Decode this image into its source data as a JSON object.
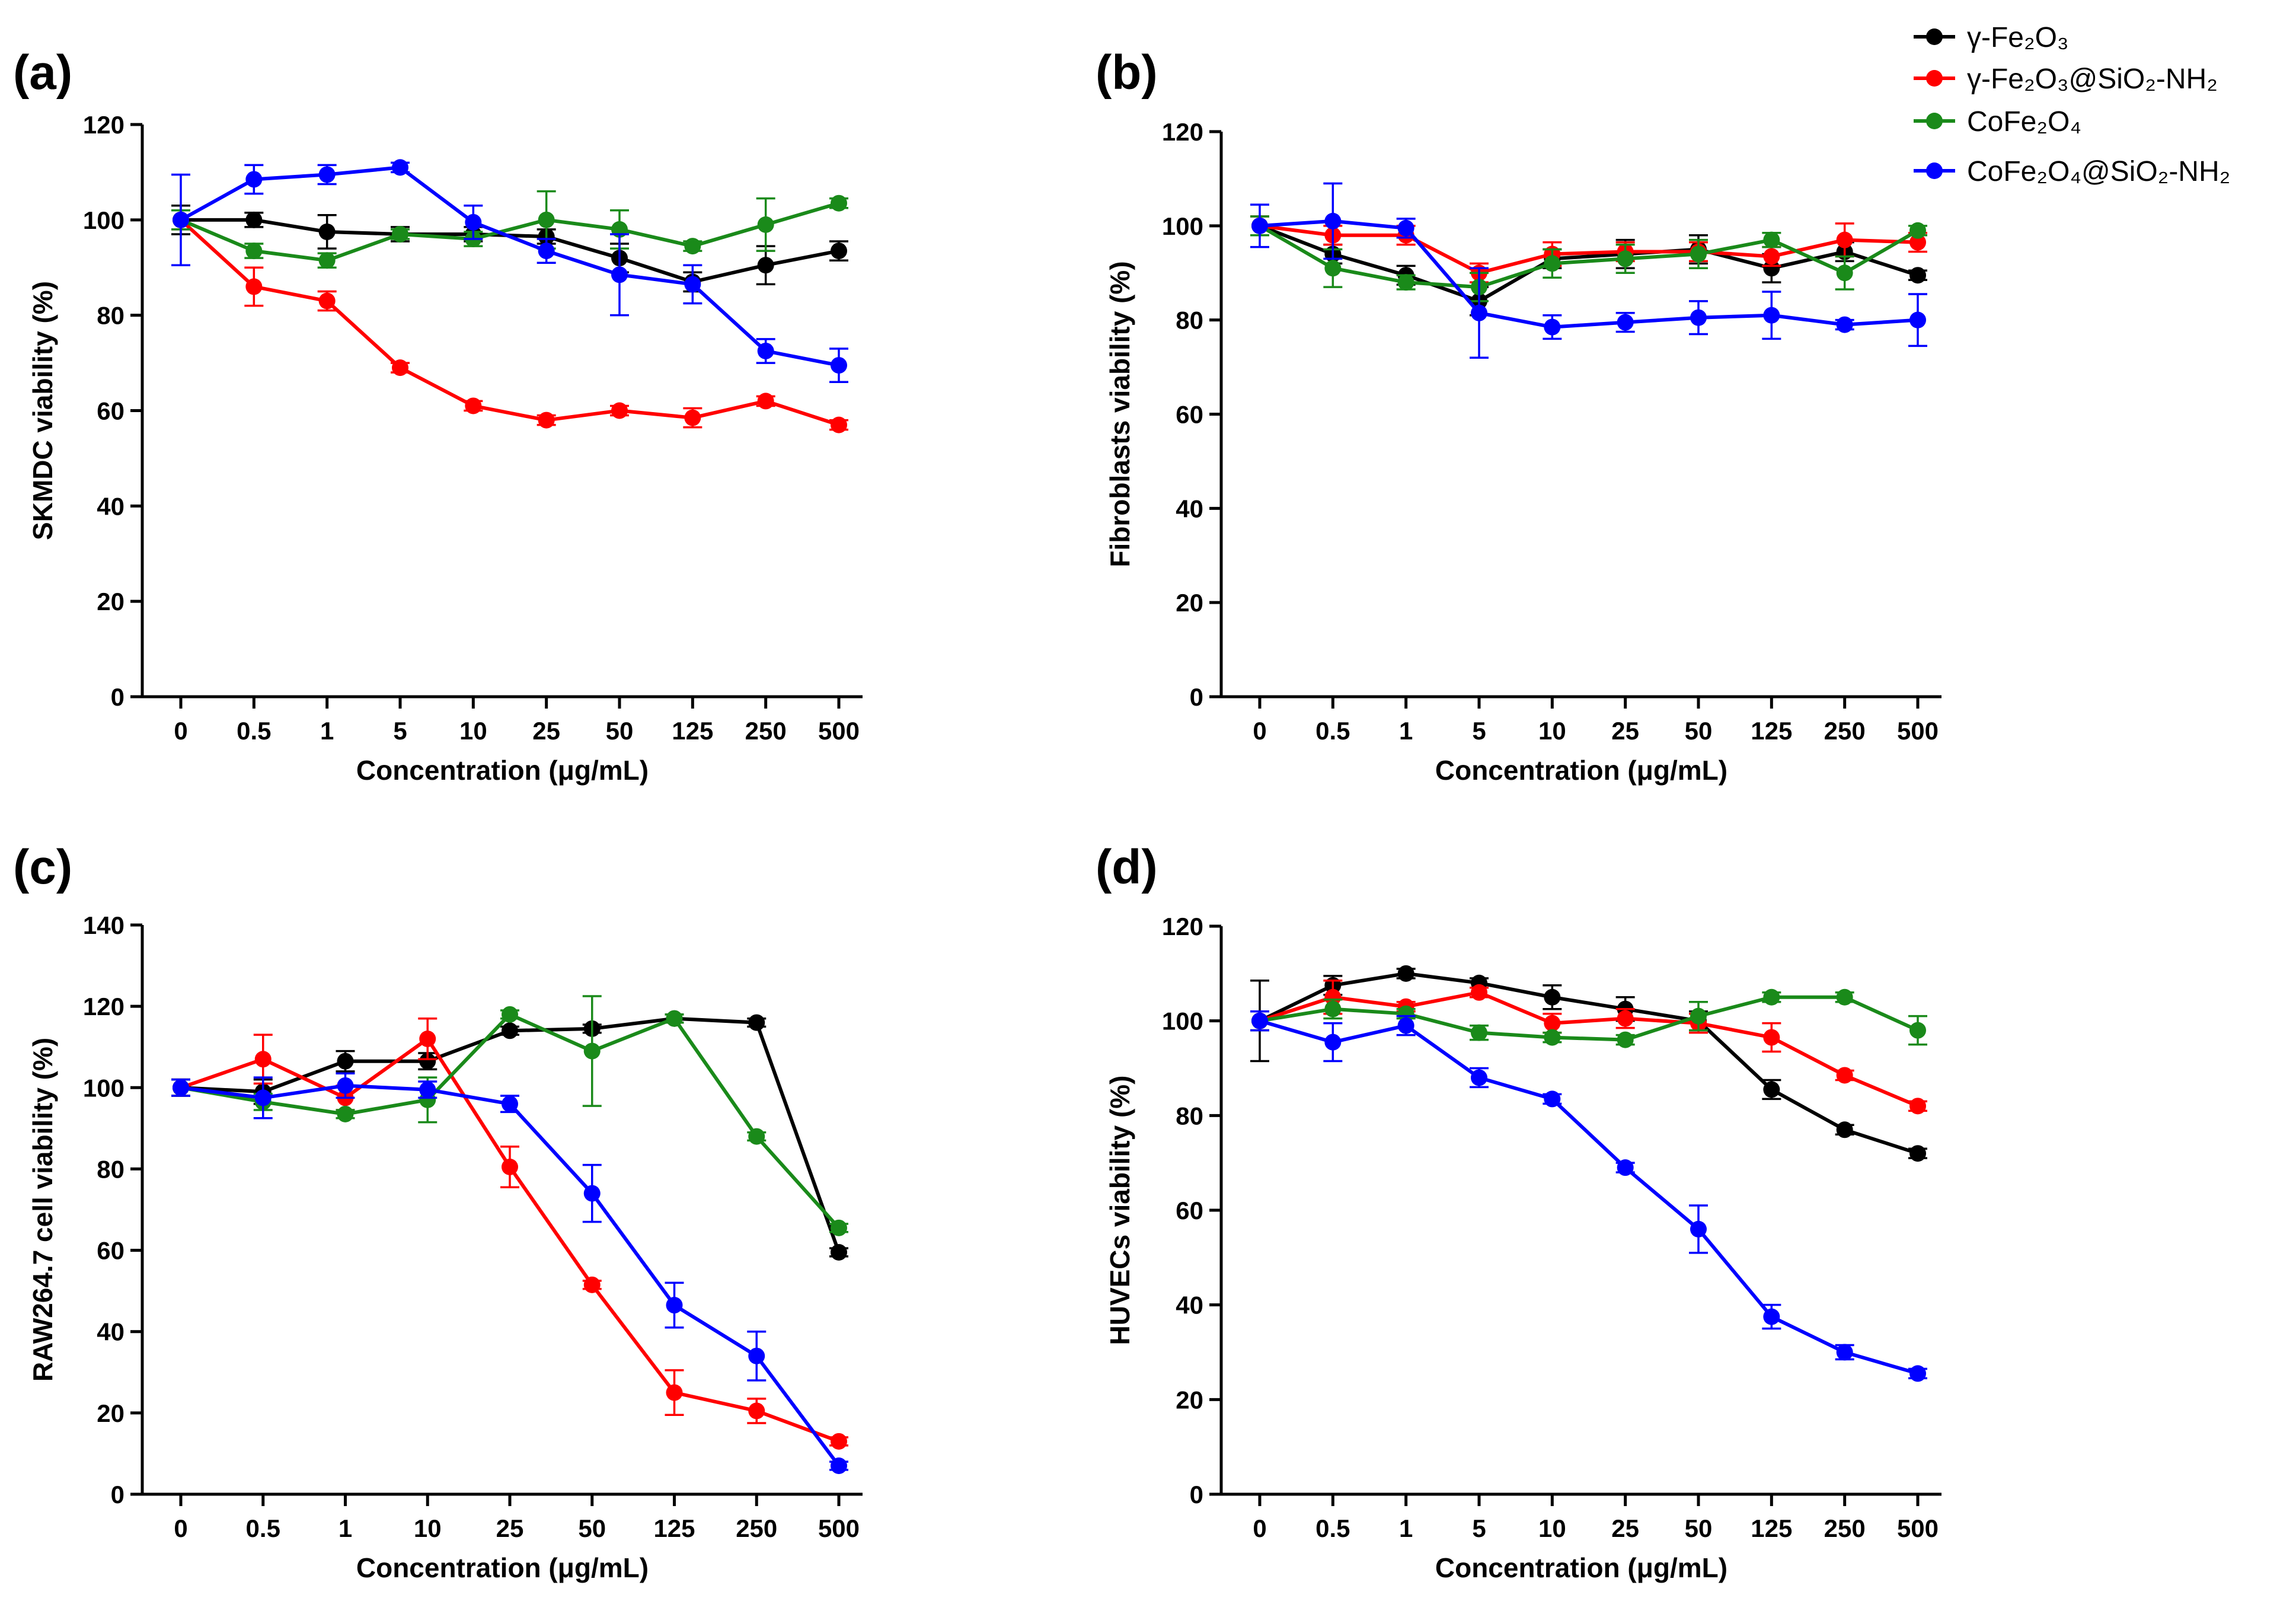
{
  "legend": [
    {
      "label": "γ-Fe₂O₃",
      "color": "#000000"
    },
    {
      "label": "γ-Fe₂O₃@SiO₂-NH₂",
      "color": "#ff0000"
    },
    {
      "label": "CoFe₂O₄",
      "color": "#1a8a1a"
    },
    {
      "label": "CoFe₂O₄@SiO₂-NH₂",
      "color": "#0000ff"
    }
  ],
  "chart_data": [
    {
      "type": "line",
      "panel": "(a)",
      "ylabel": "SKMDC viability (%)",
      "xlabel": "Concentration (μg/mL)",
      "ylim": [
        0,
        120
      ],
      "yticks": [
        0,
        20,
        40,
        60,
        80,
        100,
        120
      ],
      "categories": [
        "0",
        "0.5",
        "1",
        "5",
        "10",
        "25",
        "50",
        "125",
        "250",
        "500"
      ],
      "series": [
        {
          "name": "γ-Fe₂O₃",
          "color": "#000000",
          "values": [
            100,
            100,
            97.5,
            97,
            97,
            96.5,
            92,
            87,
            90.5,
            93.5
          ],
          "errors": [
            3,
            1.5,
            3.5,
            1.5,
            1.5,
            1.5,
            3,
            2,
            4,
            2
          ]
        },
        {
          "name": "γ-Fe₂O₃@SiO₂-NH₂",
          "color": "#ff0000",
          "values": [
            100,
            86,
            83,
            69,
            61,
            58,
            60,
            58.5,
            62,
            57
          ],
          "errors": [
            2,
            4,
            2,
            1,
            1,
            1,
            1,
            2,
            1,
            1
          ]
        },
        {
          "name": "CoFe₂O₄",
          "color": "#1a8a1a",
          "values": [
            100,
            93.5,
            91.5,
            97,
            96,
            100,
            98,
            94.5,
            99,
            103.5
          ],
          "errors": [
            2,
            1.5,
            1.5,
            1,
            1.5,
            6,
            4,
            1,
            5.5,
            1
          ]
        },
        {
          "name": "CoFe₂O₄@SiO₂-NH₂",
          "color": "#0000ff",
          "values": [
            100,
            108.5,
            109.5,
            111,
            99.5,
            93.5,
            88.5,
            86.5,
            72.5,
            69.5
          ],
          "errors": [
            9.5,
            3,
            2,
            1,
            3.5,
            2.5,
            8.5,
            4,
            2.5,
            3.5
          ]
        }
      ]
    },
    {
      "type": "line",
      "panel": "(b)",
      "ylabel": "Fibroblasts viability (%)",
      "xlabel": "Concentration (μg/mL)",
      "ylim": [
        0,
        120
      ],
      "yticks": [
        0,
        20,
        40,
        60,
        80,
        100,
        120
      ],
      "categories": [
        "0",
        "0.5",
        "1",
        "5",
        "10",
        "25",
        "50",
        "125",
        "250",
        "500"
      ],
      "series": [
        {
          "name": "γ-Fe₂O₃",
          "color": "#000000",
          "values": [
            100,
            94,
            89.5,
            84,
            93,
            94,
            95,
            91,
            94.5,
            89.5
          ],
          "errors": [
            2,
            2,
            2,
            3,
            2,
            3,
            3,
            3,
            2,
            1
          ]
        },
        {
          "name": "γ-Fe₂O₃@SiO₂-NH₂",
          "color": "#ff0000",
          "values": [
            100,
            98,
            98,
            90,
            94,
            94.5,
            94.5,
            93.5,
            97,
            96.5
          ],
          "errors": [
            2,
            2,
            2,
            2,
            2.5,
            2,
            2,
            2,
            3.5,
            2
          ]
        },
        {
          "name": "CoFe₂O₄",
          "color": "#1a8a1a",
          "values": [
            100,
            91,
            88,
            87,
            92,
            93,
            94,
            97,
            90,
            99
          ],
          "errors": [
            2,
            4,
            1.5,
            3,
            3,
            3,
            3,
            1.5,
            3.5,
            1
          ]
        },
        {
          "name": "CoFe₂O₄@SiO₂-NH₂",
          "color": "#0000ff",
          "values": [
            100,
            101,
            99.5,
            81.5,
            78.5,
            79.5,
            80.5,
            81,
            79,
            80
          ],
          "errors": [
            4.5,
            8,
            2,
            9.5,
            2.5,
            2,
            3.5,
            5,
            1,
            5.5
          ]
        }
      ]
    },
    {
      "type": "line",
      "panel": "(c)",
      "ylabel": "RAW264.7 cell viability (%)",
      "xlabel": "Concentration (μg/mL)",
      "ylim": [
        0,
        140
      ],
      "yticks": [
        0,
        20,
        40,
        60,
        80,
        100,
        120,
        140
      ],
      "categories": [
        "0",
        "0.5",
        "1",
        "10",
        "25",
        "50",
        "125",
        "250",
        "500"
      ],
      "series": [
        {
          "name": "γ-Fe₂O₃",
          "color": "#000000",
          "values": [
            100,
            99,
            106.5,
            106.5,
            114,
            114.5,
            117,
            116,
            59.5
          ],
          "errors": [
            2,
            3,
            2.5,
            2,
            1,
            1,
            1,
            1,
            1
          ]
        },
        {
          "name": "γ-Fe₂O₃@SiO₂-NH₂",
          "color": "#ff0000",
          "values": [
            100,
            107,
            97.5,
            112,
            80.5,
            51.5,
            25,
            20.5,
            13
          ],
          "errors": [
            2,
            6,
            3,
            5,
            5,
            1,
            5.5,
            3,
            1
          ]
        },
        {
          "name": "CoFe₂O₄",
          "color": "#1a8a1a",
          "values": [
            100,
            96.5,
            93.5,
            97,
            118,
            109,
            117,
            88,
            65.5
          ],
          "errors": [
            2,
            2,
            1,
            5.5,
            1,
            13.5,
            1,
            1,
            1
          ]
        },
        {
          "name": "CoFe₂O₄@SiO₂-NH₂",
          "color": "#0000ff",
          "values": [
            100,
            97.5,
            100.5,
            99.5,
            96,
            74,
            46.5,
            34,
            7
          ],
          "errors": [
            2,
            5,
            3,
            2,
            2,
            7,
            5.5,
            6,
            1
          ]
        }
      ]
    },
    {
      "type": "line",
      "panel": "(d)",
      "ylabel": "HUVECs viability (%)",
      "xlabel": "Concentration (μg/mL)",
      "ylim": [
        0,
        120
      ],
      "yticks": [
        0,
        20,
        40,
        60,
        80,
        100,
        120
      ],
      "categories": [
        "0",
        "0.5",
        "1",
        "5",
        "10",
        "25",
        "50",
        "125",
        "250",
        "500"
      ],
      "series": [
        {
          "name": "γ-Fe₂O₃",
          "color": "#000000",
          "values": [
            100,
            107.5,
            110,
            108,
            105,
            102.5,
            100,
            85.5,
            77,
            72
          ],
          "errors": [
            8.5,
            2,
            1,
            1,
            2.5,
            2.5,
            2,
            2,
            1,
            1
          ]
        },
        {
          "name": "γ-Fe₂O₃@SiO₂-NH₂",
          "color": "#ff0000",
          "values": [
            100,
            105,
            103,
            106,
            99.5,
            100.5,
            99.5,
            96.5,
            88.5,
            82
          ],
          "errors": [
            2,
            3.5,
            1,
            1,
            2,
            2,
            2,
            3,
            1,
            1
          ]
        },
        {
          "name": "CoFe₂O₄",
          "color": "#1a8a1a",
          "values": [
            100,
            102.5,
            101.5,
            97.5,
            96.5,
            96,
            101,
            105,
            105,
            98
          ],
          "errors": [
            2,
            2,
            1,
            1.5,
            1,
            1,
            3,
            1,
            1,
            3
          ]
        },
        {
          "name": "CoFe₂O₄@SiO₂-NH₂",
          "color": "#0000ff",
          "values": [
            100,
            95.5,
            99,
            88,
            83.5,
            69,
            56,
            37.5,
            30,
            25.5
          ],
          "errors": [
            2,
            4,
            2,
            2,
            1,
            1,
            5,
            2.5,
            1.5,
            1
          ]
        }
      ]
    }
  ]
}
